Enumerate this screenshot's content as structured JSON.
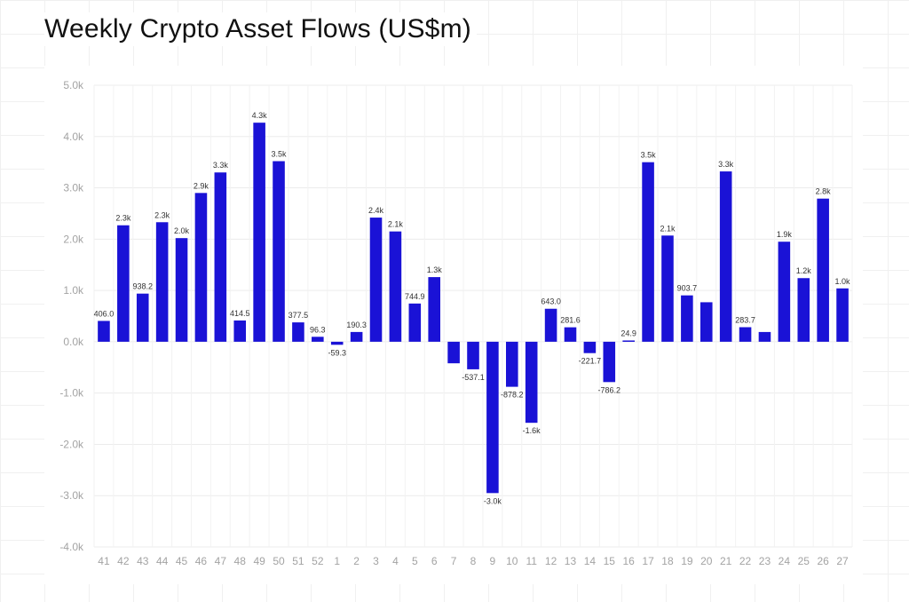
{
  "chart_data": {
    "type": "bar",
    "title": "Weekly Crypto Asset Flows (US$m)",
    "categories": [
      "41",
      "42",
      "43",
      "44",
      "45",
      "46",
      "47",
      "48",
      "49",
      "50",
      "51",
      "52",
      "1",
      "2",
      "3",
      "4",
      "5",
      "6",
      "7",
      "8",
      "9",
      "10",
      "11",
      "12",
      "13",
      "14",
      "15",
      "16",
      "17",
      "18",
      "19",
      "20",
      "21",
      "22",
      "23",
      "24",
      "25",
      "26",
      "27"
    ],
    "values": [
      406.0,
      2270,
      938.2,
      2330,
      2020,
      2900,
      3300,
      414.5,
      4270,
      3520,
      377.5,
      96.3,
      -59.3,
      190.3,
      2420,
      2150,
      744.9,
      1260,
      -420,
      -537.1,
      -2950,
      -878.2,
      -1580,
      643.0,
      281.6,
      -221.7,
      -786.2,
      24.9,
      3500,
      2070,
      903.7,
      770,
      3320,
      283.7,
      190,
      1950,
      1240,
      2790,
      1040
    ],
    "data_labels": [
      "406.0",
      "2.3k",
      "938.2",
      "2.3k",
      "2.0k",
      "2.9k",
      "3.3k",
      "414.5",
      "4.3k",
      "3.5k",
      "377.5",
      "96.3",
      "-59.3",
      "190.3",
      "2.4k",
      "2.1k",
      "744.9",
      "1.3k",
      "",
      "-537.1",
      "-3.0k",
      "-878.2",
      "-1.6k",
      "643.0",
      "281.6",
      "-221.7",
      "-786.2",
      "24.9",
      "3.5k",
      "2.1k",
      "903.7",
      "",
      "3.3k",
      "283.7",
      "",
      "1.9k",
      "1.2k",
      "2.8k",
      "1.0k"
    ],
    "y_ticks": [
      "5.0k",
      "4.0k",
      "3.0k",
      "2.0k",
      "1.0k",
      "0.0k",
      "-1.0k",
      "-2.0k",
      "-3.0k",
      "-4.0k"
    ],
    "ylim": [
      -4000,
      5000
    ],
    "grid": true,
    "bar_color": "#1a12d6"
  }
}
